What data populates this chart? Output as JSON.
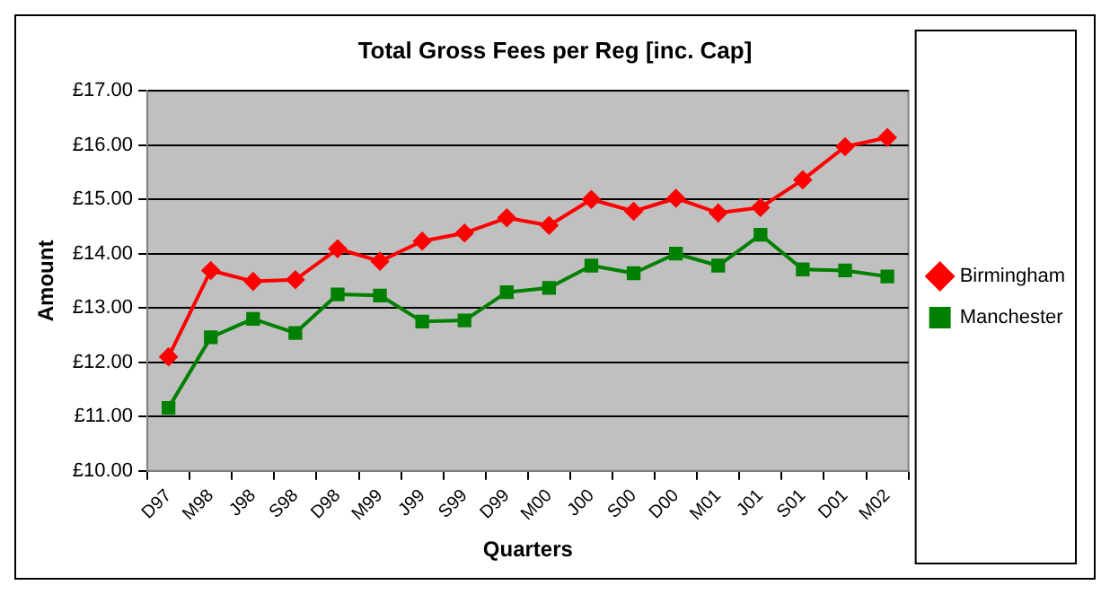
{
  "chart_data": {
    "type": "line",
    "title": "Total Gross Fees per Reg [inc. Cap]",
    "xlabel": "Quarters",
    "ylabel": "Amount",
    "categories": [
      "D97",
      "M98",
      "J98",
      "S98",
      "D98",
      "M99",
      "J99",
      "S99",
      "D99",
      "M00",
      "J00",
      "S00",
      "D00",
      "M01",
      "J01",
      "S01",
      "D01",
      "M02"
    ],
    "series": [
      {
        "name": "Birmingham",
        "color": "#ff0000",
        "marker": "diamond",
        "values": [
          12.1,
          13.69,
          13.49,
          13.52,
          14.09,
          13.86,
          14.23,
          14.38,
          14.66,
          14.52,
          15.0,
          14.78,
          15.02,
          14.75,
          14.85,
          15.36,
          15.97,
          16.14
        ]
      },
      {
        "name": "Manchester",
        "color": "#008000",
        "marker": "square",
        "values": [
          11.16,
          12.46,
          12.8,
          12.54,
          13.25,
          13.23,
          12.75,
          12.77,
          13.29,
          13.37,
          13.78,
          13.64,
          14.0,
          13.78,
          14.35,
          13.71,
          13.69,
          13.58
        ]
      }
    ],
    "ylim": [
      10,
      17
    ],
    "yticks": [
      {
        "value": 10,
        "label": "£10.00"
      },
      {
        "value": 11,
        "label": "£11.00"
      },
      {
        "value": 12,
        "label": "£12.00"
      },
      {
        "value": 13,
        "label": "£13.00"
      },
      {
        "value": 14,
        "label": "£14.00"
      },
      {
        "value": 15,
        "label": "£15.00"
      },
      {
        "value": 16,
        "label": "£16.00"
      },
      {
        "value": 17,
        "label": "£17.00"
      }
    ],
    "grid": "y",
    "legend": "right",
    "line_style": "solid"
  }
}
